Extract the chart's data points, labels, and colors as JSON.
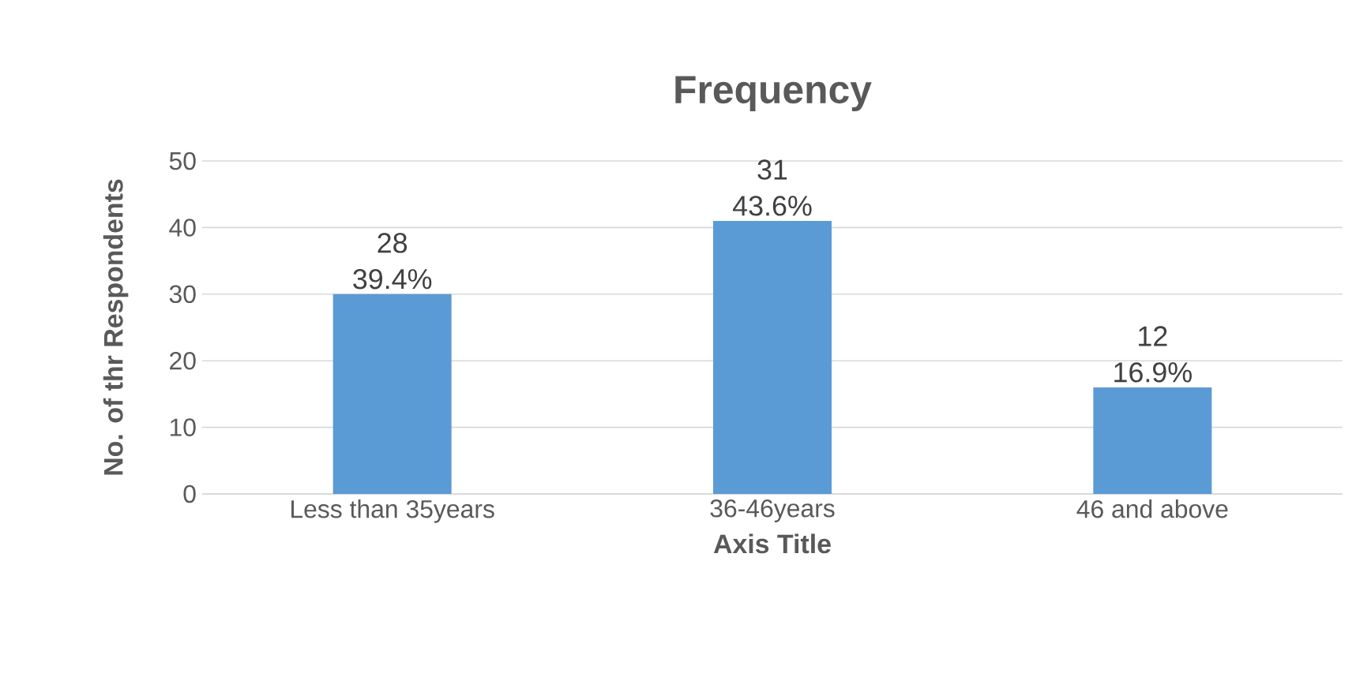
{
  "chart_data": {
    "type": "bar",
    "title": "Frequency",
    "xlabel": "Axis Title",
    "ylabel": "No. of thr Respondents",
    "categories": [
      "Less than 35years",
      "36-46years",
      "46 and above"
    ],
    "values": [
      30,
      41,
      16
    ],
    "color": "#5b9bd5",
    "annotations": [
      {
        "text": "28 39.4%",
        "x": "Less than 35years",
        "y": 30
      },
      {
        "text": "31 43.6%",
        "x": "36-46years",
        "y": 41
      },
      {
        "text": "12 16.9%",
        "x": "46 and above",
        "y": 16
      }
    ],
    "ylim": [
      0,
      50
    ],
    "yticks": [
      0,
      10,
      20,
      30,
      40,
      50
    ],
    "grid": "y"
  }
}
